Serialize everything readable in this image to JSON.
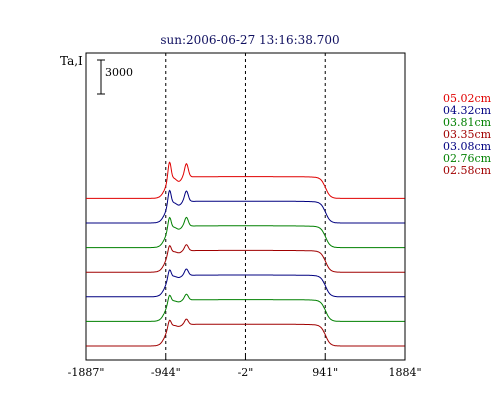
{
  "chart_data": {
    "type": "line",
    "title": "sun:2006-06-27 13:16:38.700",
    "ylabel": "Ta,I",
    "scale_bar_label": "3000",
    "scale_bar_value": 3000,
    "xlim": [
      -1887,
      1884
    ],
    "x_ticks": [
      {
        "value": -1887,
        "label": "-1887\""
      },
      {
        "value": -944,
        "label": "-944\""
      },
      {
        "value": -2,
        "label": "-2\""
      },
      {
        "value": 941,
        "label": "941\""
      },
      {
        "value": 1884,
        "label": "1884\""
      }
    ],
    "vlines": [
      -944,
      -2,
      941
    ],
    "grid": false,
    "legend_position": "right",
    "series_offset": 3000,
    "series": [
      {
        "name": "05.02cm",
        "color": "#e00000",
        "offset_index": 6,
        "peak_scale": 2.2
      },
      {
        "name": "04.32cm",
        "color": "#000080",
        "offset_index": 5,
        "peak_scale": 1.75
      },
      {
        "name": "03.81cm",
        "color": "#008000",
        "offset_index": 4,
        "peak_scale": 1.45
      },
      {
        "name": "03.35cm",
        "color": "#a00000",
        "offset_index": 3,
        "peak_scale": 1.0
      },
      {
        "name": "03.08cm",
        "color": "#000080",
        "offset_index": 2,
        "peak_scale": 1.05
      },
      {
        "name": "02.76cm",
        "color": "#008000",
        "offset_index": 1,
        "peak_scale": 0.95
      },
      {
        "name": "02.58cm",
        "color": "#a00000",
        "offset_index": 0,
        "peak_scale": 0.9
      }
    ]
  }
}
